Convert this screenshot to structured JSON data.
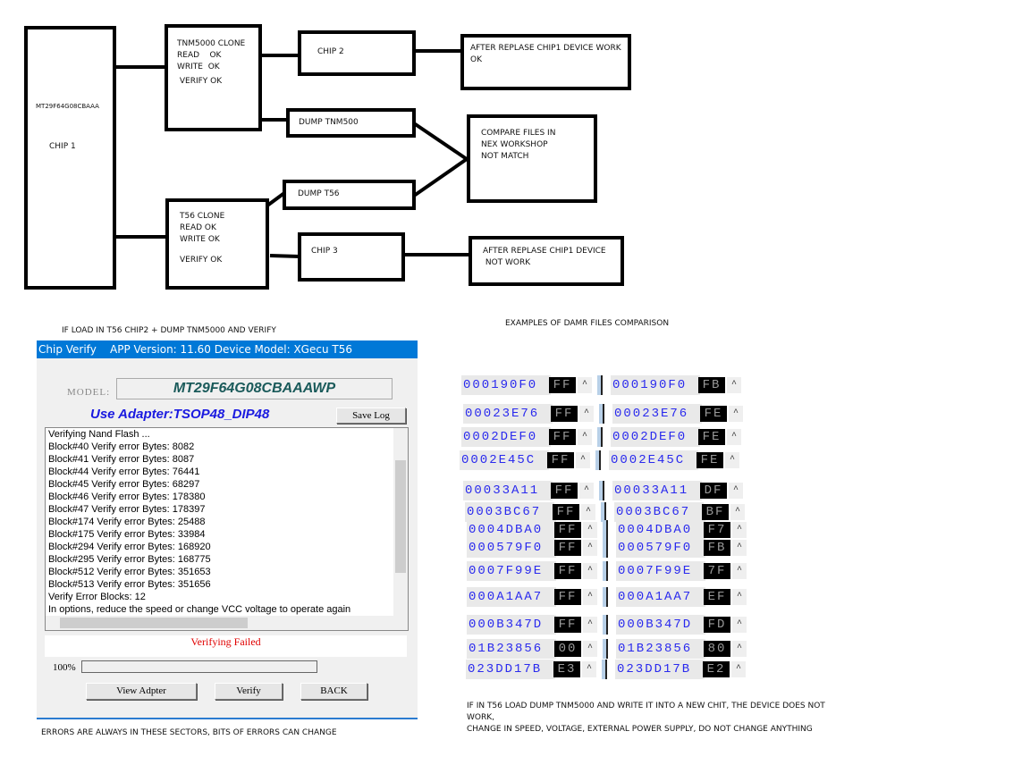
{
  "diagram": {
    "chip1": {
      "model": "MT29F64G08CBAAA",
      "label": "CHIP 1"
    },
    "tnm_clone": [
      "TNM5000 CLONE",
      "READ    OK",
      "WRITE  OK",
      " VERIFY OK"
    ],
    "chip2": "CHIP 2",
    "result_ok": [
      "AFTER REPLASE CHIP1 DEVICE WORK",
      "OK"
    ],
    "dump_tnm": "DUMP TNM500",
    "compare": [
      "COMPARE FILES IN",
      "NEX WORKSHOP",
      "NOT MATCH"
    ],
    "dump_t56": "DUMP T56",
    "t56_clone": [
      "T56 CLONE",
      "READ OK",
      "WRITE OK",
      "",
      "VERIFY OK"
    ],
    "chip3": "CHIP 3",
    "result_fail": [
      "AFTER REPLASE CHIP1 DEVICE",
      " NOT WORK"
    ]
  },
  "captions": {
    "verify_note": "IF LOAD IN T56 CHIP2 + DUMP TNM5000 AND VERIFY",
    "compare_title": "EXAMPLES OF DAMR FILES COMPARISON",
    "errors_note": "ERRORS ARE ALWAYS IN THESE SECTORS, BITS OF ERRORS CAN CHANGE",
    "bottom_note_1": "IF IN T56 LOAD DUMP TNM5000 AND WRITE IT INTO A NEW CHIT, THE DEVICE DOES NOT",
    "bottom_note_2": "WORK,",
    "bottom_note_3": "CHANGE IN SPEED, VOLTAGE, EXTERNAL POWER SUPPLY, DO NOT CHANGE ANYTHING"
  },
  "window": {
    "title": "Chip Verify    APP Version: 11.60 Device Model: XGecu T56",
    "model_label": "MODEL:",
    "model": "MT29F64G08CBAAAWP",
    "adapter": "Use Adapter:TSOP48_DIP48",
    "save_log": "Save Log",
    "log": [
      "Verifying Nand Flash ...",
      "Block#40 Verify error Bytes: 8082",
      "Block#41 Verify error Bytes: 8087",
      "Block#44 Verify error Bytes: 76441",
      "Block#45 Verify error Bytes: 68297",
      "Block#46 Verify error Bytes: 178380",
      "Block#47 Verify error Bytes: 178397",
      "Block#174 Verify error Bytes: 25488",
      "Block#175 Verify error Bytes: 33984",
      "Block#294 Verify error Bytes: 168920",
      "Block#295 Verify error Bytes: 168775",
      "Block#512 Verify error Bytes: 351653",
      "Block#513 Verify error Bytes: 351656",
      "Verify Error Blocks: 12",
      "In options, reduce the speed or change VCC voltage to operate again"
    ],
    "status": "Verifying Failed",
    "status_color": "#e00000",
    "progress": "100%",
    "buttons": {
      "view": "View Adpter",
      "verify": "Verify",
      "back": "BACK"
    }
  },
  "hex_rows": [
    {
      "addr": "000190F0",
      "a": "FF",
      "b": "FB"
    },
    {
      "addr": "00023E76",
      "a": "FF",
      "b": "FE"
    },
    {
      "addr": "0002DEF0",
      "a": "FF",
      "b": "FE"
    },
    {
      "addr": "0002E45C",
      "a": "FF",
      "b": "FE"
    },
    {
      "addr": "00033A11",
      "a": "FF",
      "b": "DF"
    },
    {
      "addr": "0003BC67",
      "a": "FF",
      "b": "BF"
    },
    {
      "addr": "0004DBA0",
      "a": "FF",
      "b": "F7"
    },
    {
      "addr": "000579F0",
      "a": "FF",
      "b": "FB"
    },
    {
      "addr": "0007F99E",
      "a": "FF",
      "b": "7F"
    },
    {
      "addr": "000A1AA7",
      "a": "FF",
      "b": "EF"
    },
    {
      "addr": "000B347D",
      "a": "FF",
      "b": "FD"
    },
    {
      "addr": "01B23856",
      "a": "00",
      "b": "80"
    },
    {
      "addr": "023DD17B",
      "a": "E3",
      "b": "E2"
    }
  ]
}
